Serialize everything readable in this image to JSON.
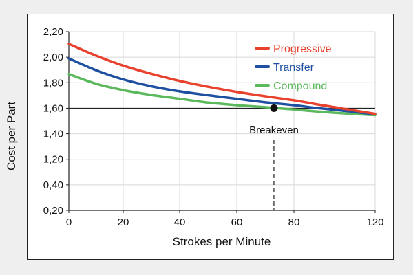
{
  "chart_data": {
    "type": "line",
    "title": "",
    "xlabel": "Strokes per Minute",
    "ylabel": "Cost per Part",
    "xlim": [
      0,
      120
    ],
    "x_ticks": [
      "0",
      "20",
      "40",
      "60",
      "80",
      "120"
    ],
    "x_tick_values": [
      0,
      20,
      40,
      60,
      80,
      120
    ],
    "y_ticks": [
      "0,20",
      "0,40",
      "1,20",
      "1,40",
      "1,60",
      "1,80",
      "2,00",
      "2,20"
    ],
    "grid": true,
    "legend_position": "top-right",
    "series": [
      {
        "name": "Progressive",
        "color": "#e8412c",
        "x": [
          0,
          10,
          20,
          30,
          40,
          50,
          60,
          70,
          80,
          90,
          100,
          110,
          120
        ],
        "y_tick_position": [
          6.52,
          6.06,
          5.67,
          5.35,
          5.07,
          4.84,
          4.64,
          4.47,
          4.31,
          4.17,
          4.04,
          3.91,
          3.78
        ]
      },
      {
        "name": "Transfer",
        "color": "#1f4fa0",
        "x": [
          0,
          10,
          20,
          30,
          40,
          50,
          60,
          70,
          80,
          90,
          100,
          110,
          120
        ],
        "y_tick_position": [
          5.95,
          5.49,
          5.13,
          4.86,
          4.66,
          4.51,
          4.37,
          4.23,
          4.12,
          4.02,
          3.94,
          3.85,
          3.76
        ]
      },
      {
        "name": "Compound",
        "color": "#5cb85c",
        "x": [
          0,
          10,
          20,
          30,
          40,
          50,
          60,
          70,
          80,
          90,
          100,
          110,
          120
        ],
        "y_tick_position": [
          5.34,
          4.96,
          4.71,
          4.52,
          4.37,
          4.22,
          4.12,
          4.04,
          3.95,
          3.88,
          3.82,
          3.77,
          3.73
        ]
      }
    ],
    "reference_line": {
      "y_tick_position": 4.0,
      "color": "#222222"
    },
    "annotation": {
      "label": "Breakeven",
      "x": 73,
      "y_tick_position": 4.0,
      "marker_color": "#111111"
    }
  }
}
